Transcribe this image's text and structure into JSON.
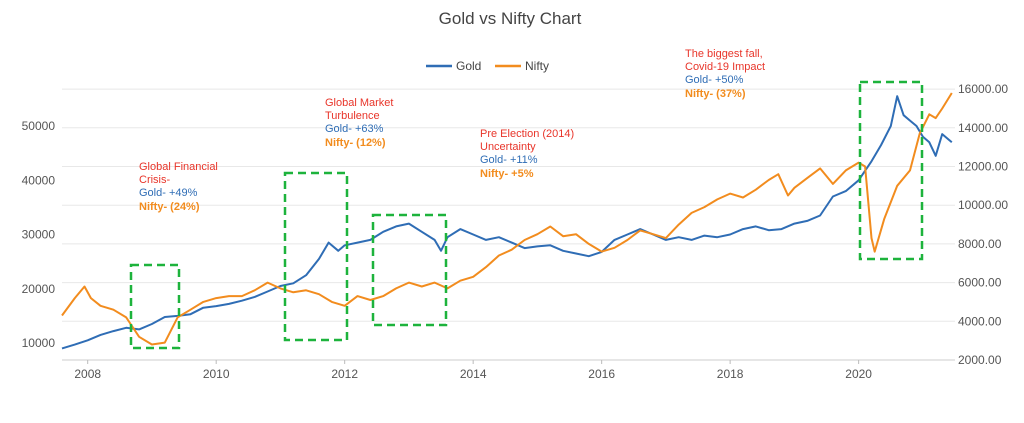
{
  "chart_data": {
    "type": "line",
    "title": "Gold vs Nifty Chart",
    "xlabel": "",
    "ylabel_left": "",
    "ylabel_right": "",
    "x_ticks": [
      2008,
      2010,
      2012,
      2014,
      2016,
      2018,
      2020
    ],
    "y_left_ticks": [
      "10000",
      "20000",
      "30000",
      "40000",
      "50000"
    ],
    "y_right_ticks": [
      "2000.00",
      "4000.00",
      "6000.00",
      "8000.00",
      "10000.00",
      "12000.00",
      "14000.00",
      "16000.00"
    ],
    "xlim": [
      2007.6,
      2021.5
    ],
    "ylim_left": [
      6000,
      62000
    ],
    "ylim_right": [
      2000,
      17600
    ],
    "grid": true,
    "legend_position": "top-center",
    "series": [
      {
        "name": "Gold",
        "axis": "left",
        "color": "#2f6db5",
        "points": [
          [
            2007.6,
            9000
          ],
          [
            2007.8,
            9700
          ],
          [
            2008.0,
            10500
          ],
          [
            2008.2,
            11500
          ],
          [
            2008.4,
            12200
          ],
          [
            2008.6,
            12800
          ],
          [
            2008.8,
            12500
          ],
          [
            2009.0,
            13500
          ],
          [
            2009.2,
            14800
          ],
          [
            2009.4,
            15000
          ],
          [
            2009.6,
            15300
          ],
          [
            2009.8,
            16500
          ],
          [
            2010.0,
            16800
          ],
          [
            2010.2,
            17200
          ],
          [
            2010.4,
            17800
          ],
          [
            2010.6,
            18500
          ],
          [
            2010.8,
            19500
          ],
          [
            2011.0,
            20500
          ],
          [
            2011.2,
            21000
          ],
          [
            2011.4,
            22500
          ],
          [
            2011.6,
            25500
          ],
          [
            2011.75,
            28500
          ],
          [
            2011.9,
            27000
          ],
          [
            2012.0,
            28000
          ],
          [
            2012.2,
            28500
          ],
          [
            2012.4,
            29000
          ],
          [
            2012.6,
            30500
          ],
          [
            2012.8,
            31500
          ],
          [
            2013.0,
            32000
          ],
          [
            2013.2,
            30500
          ],
          [
            2013.4,
            29000
          ],
          [
            2013.5,
            27000
          ],
          [
            2013.6,
            29500
          ],
          [
            2013.8,
            31000
          ],
          [
            2014.0,
            30000
          ],
          [
            2014.2,
            29000
          ],
          [
            2014.4,
            29500
          ],
          [
            2014.6,
            28500
          ],
          [
            2014.8,
            27500
          ],
          [
            2015.0,
            27800
          ],
          [
            2015.2,
            28000
          ],
          [
            2015.4,
            27000
          ],
          [
            2015.6,
            26500
          ],
          [
            2015.8,
            26000
          ],
          [
            2016.0,
            26800
          ],
          [
            2016.2,
            29000
          ],
          [
            2016.4,
            30000
          ],
          [
            2016.6,
            31000
          ],
          [
            2016.8,
            30000
          ],
          [
            2017.0,
            29000
          ],
          [
            2017.2,
            29500
          ],
          [
            2017.4,
            29000
          ],
          [
            2017.6,
            29800
          ],
          [
            2017.8,
            29500
          ],
          [
            2018.0,
            30000
          ],
          [
            2018.2,
            31000
          ],
          [
            2018.4,
            31500
          ],
          [
            2018.6,
            30800
          ],
          [
            2018.8,
            31000
          ],
          [
            2019.0,
            32000
          ],
          [
            2019.2,
            32500
          ],
          [
            2019.4,
            33500
          ],
          [
            2019.6,
            37000
          ],
          [
            2019.8,
            38000
          ],
          [
            2020.0,
            40000
          ],
          [
            2020.2,
            43500
          ],
          [
            2020.35,
            46500
          ],
          [
            2020.5,
            50000
          ],
          [
            2020.6,
            55500
          ],
          [
            2020.7,
            52000
          ],
          [
            2020.8,
            51000
          ],
          [
            2020.9,
            50000
          ],
          [
            2021.0,
            48000
          ],
          [
            2021.1,
            47000
          ],
          [
            2021.2,
            44500
          ],
          [
            2021.3,
            48500
          ],
          [
            2021.45,
            47000
          ]
        ]
      },
      {
        "name": "Nifty",
        "axis": "right",
        "color": "#f28c1e",
        "points": [
          [
            2007.6,
            4300
          ],
          [
            2007.8,
            5200
          ],
          [
            2007.95,
            5800
          ],
          [
            2008.05,
            5200
          ],
          [
            2008.2,
            4800
          ],
          [
            2008.4,
            4600
          ],
          [
            2008.6,
            4200
          ],
          [
            2008.8,
            3200
          ],
          [
            2009.0,
            2800
          ],
          [
            2009.2,
            2900
          ],
          [
            2009.4,
            4200
          ],
          [
            2009.6,
            4600
          ],
          [
            2009.8,
            5000
          ],
          [
            2010.0,
            5200
          ],
          [
            2010.2,
            5300
          ],
          [
            2010.4,
            5300
          ],
          [
            2010.6,
            5600
          ],
          [
            2010.8,
            6000
          ],
          [
            2011.0,
            5700
          ],
          [
            2011.2,
            5500
          ],
          [
            2011.4,
            5600
          ],
          [
            2011.6,
            5400
          ],
          [
            2011.8,
            5000
          ],
          [
            2012.0,
            4800
          ],
          [
            2012.2,
            5300
          ],
          [
            2012.4,
            5100
          ],
          [
            2012.6,
            5300
          ],
          [
            2012.8,
            5700
          ],
          [
            2013.0,
            6000
          ],
          [
            2013.2,
            5800
          ],
          [
            2013.4,
            6000
          ],
          [
            2013.6,
            5700
          ],
          [
            2013.8,
            6100
          ],
          [
            2014.0,
            6300
          ],
          [
            2014.2,
            6800
          ],
          [
            2014.4,
            7400
          ],
          [
            2014.6,
            7700
          ],
          [
            2014.8,
            8200
          ],
          [
            2015.0,
            8500
          ],
          [
            2015.2,
            8900
          ],
          [
            2015.4,
            8400
          ],
          [
            2015.6,
            8500
          ],
          [
            2015.8,
            8000
          ],
          [
            2016.0,
            7600
          ],
          [
            2016.2,
            7800
          ],
          [
            2016.4,
            8200
          ],
          [
            2016.6,
            8700
          ],
          [
            2016.8,
            8500
          ],
          [
            2017.0,
            8300
          ],
          [
            2017.2,
            9000
          ],
          [
            2017.4,
            9600
          ],
          [
            2017.6,
            9900
          ],
          [
            2017.8,
            10300
          ],
          [
            2018.0,
            10600
          ],
          [
            2018.2,
            10400
          ],
          [
            2018.4,
            10800
          ],
          [
            2018.6,
            11300
          ],
          [
            2018.75,
            11600
          ],
          [
            2018.9,
            10500
          ],
          [
            2019.0,
            10900
          ],
          [
            2019.2,
            11400
          ],
          [
            2019.4,
            11900
          ],
          [
            2019.6,
            11100
          ],
          [
            2019.8,
            11800
          ],
          [
            2020.0,
            12200
          ],
          [
            2020.1,
            12000
          ],
          [
            2020.2,
            8300
          ],
          [
            2020.25,
            7600
          ],
          [
            2020.4,
            9300
          ],
          [
            2020.6,
            11000
          ],
          [
            2020.8,
            11800
          ],
          [
            2020.95,
            13700
          ],
          [
            2021.1,
            14700
          ],
          [
            2021.2,
            14500
          ],
          [
            2021.3,
            15000
          ],
          [
            2021.45,
            15800
          ]
        ]
      }
    ],
    "annotations": [
      {
        "lines": [
          "Global Financial",
          "Crisis-"
        ],
        "gold": "Gold- +49%",
        "nifty": "Nifty- (24%)"
      },
      {
        "lines": [
          "Global Market",
          "Turbulence"
        ],
        "gold": "Gold- +63%",
        "nifty": "Nifty- (12%)"
      },
      {
        "lines": [
          "Pre Election (2014)",
          "Uncertainty"
        ],
        "gold": "Gold- +11%",
        "nifty": "Nifty- +5%"
      },
      {
        "lines": [
          "The biggest fall,",
          "Covid-19 Impact"
        ],
        "gold": "Gold- +50%",
        "nifty": "Nifty- (37%)"
      }
    ]
  }
}
